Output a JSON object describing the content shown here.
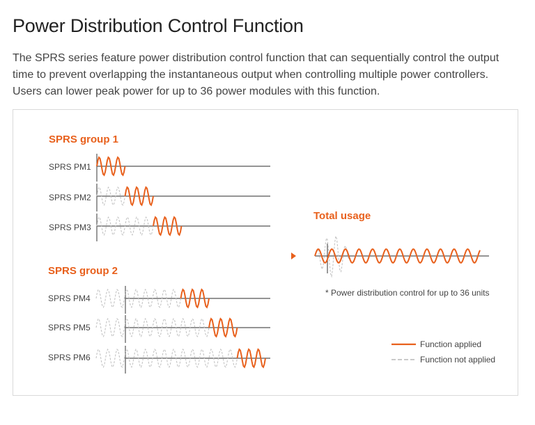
{
  "page": {
    "title": "Power Distribution Control Function",
    "description": "The SPRS series feature power distribution control function that can sequentially control the output time to prevent overlapping the instantaneous output when controlling multiple power controllers. Users can lower peak power for up to 36 power modules with this function."
  },
  "diagram": {
    "colors": {
      "applied": "#e8601c",
      "not_applied": "#c4c4c4",
      "axis": "#555555"
    },
    "groups": [
      {
        "title": "SPRS group 1",
        "rows": [
          {
            "label": "SPRS PM1",
            "active_slot": 0
          },
          {
            "label": "SPRS PM2",
            "active_slot": 1
          },
          {
            "label": "SPRS PM3",
            "active_slot": 2
          }
        ]
      },
      {
        "title": "SPRS group 2",
        "rows": [
          {
            "label": "SPRS PM4",
            "active_slot": 3
          },
          {
            "label": "SPRS PM5",
            "active_slot": 4
          },
          {
            "label": "SPRS PM6",
            "active_slot": 5
          }
        ]
      }
    ],
    "total": {
      "title": "Total usage",
      "note": "* Power distribution control for up to 36 units"
    },
    "legend": {
      "applied": "Function applied",
      "not_applied": "Function not applied"
    }
  }
}
